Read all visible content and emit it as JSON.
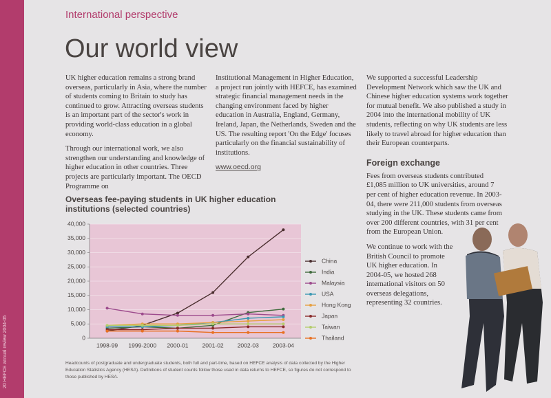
{
  "header": {
    "section": "International perspective",
    "title": "Our world view",
    "folio": "20  HEFCE annual review 2004-05"
  },
  "column_1": {
    "paragraphs": [
      "UK higher education remains a strong brand overseas, particularly in Asia, where the number of students coming to Britain to study has continued to grow. Attracting overseas students is an important part of the sector's work in providing world-class education in a global economy.",
      "Through our international work, we also strengthen our understanding and knowledge of higher education in other countries. Three projects are particularly important. The OECD Programme on"
    ]
  },
  "column_2": {
    "paragraphs": [
      "Institutional Management in Higher Education, a project run jointly with HEFCE, has examined strategic financial management needs in the changing environment faced by higher education in Australia, England, Germany, Ireland, Japan, the Netherlands, Sweden and the US. The resulting report 'On the Edge' focuses particularly on the financial sustainability of institutions."
    ],
    "link": "www.oecd.org"
  },
  "column_3": {
    "paragraphs": [
      "We supported a successful Leadership Development Network which saw the UK and Chinese higher education systems work together for mutual benefit. We also published a study in 2004 into the international mobility of UK students, reflecting on why UK students are less likely to travel abroad for higher education than their European counterparts."
    ],
    "heading": "Foreign exchange",
    "paragraphs_2": [
      "Fees from overseas students contributed £1,085 million to UK universities, around 7 per cent of higher education revenue. In 2003-04, there were 211,000 students from overseas studying in the UK. These students came from over 200 different countries, with 31 per cent from the European Union.",
      "We continue to work with the British Council to promote UK higher education. In 2004-05, we hosted 268 international visitors on 50 overseas delegations, representing 32 countries."
    ]
  },
  "chart_data": {
    "type": "line",
    "title": "Overseas fee-paying students in UK higher education institutions (selected countries)",
    "categories": [
      "1998-99",
      "1999-2000",
      "2000-01",
      "2001-02",
      "2002-03",
      "2003-04"
    ],
    "ylim": [
      0,
      40000
    ],
    "yticks": [
      0,
      {
        "value": 5000,
        "label": "5,000"
      },
      {
        "value": 10000,
        "label": "10,000"
      },
      {
        "value": 15000,
        "label": "15,000"
      },
      {
        "value": 20000,
        "label": "20,000"
      },
      {
        "value": 25000,
        "label": "25,000"
      },
      {
        "value": 30000,
        "label": "30,000"
      },
      {
        "value": 35000,
        "label": "35,000"
      },
      {
        "value": 40000,
        "label": "40,000"
      }
    ],
    "grid": true,
    "background": "#e8c6d6",
    "series": [
      {
        "name": "China",
        "color": "#4a2e2e",
        "values": [
          2500,
          4500,
          8800,
          16000,
          28500,
          38000
        ]
      },
      {
        "name": "India",
        "color": "#3f6a3c",
        "values": [
          3500,
          4000,
          3500,
          4500,
          9000,
          10200
        ]
      },
      {
        "name": "Malaysia",
        "color": "#9c4a8c",
        "values": [
          10500,
          8500,
          8000,
          8000,
          8500,
          8000
        ]
      },
      {
        "name": "USA",
        "color": "#3a98b2",
        "values": [
          4000,
          4000,
          4500,
          5500,
          7000,
          7500
        ]
      },
      {
        "name": "Hong Kong",
        "color": "#e6a040",
        "values": [
          4500,
          5000,
          5000,
          5500,
          6000,
          6500
        ]
      },
      {
        "name": "Japan",
        "color": "#8a2a2a",
        "values": [
          3000,
          3000,
          3500,
          3500,
          4000,
          4000
        ]
      },
      {
        "name": "Taiwan",
        "color": "#b4cc6c",
        "values": [
          4500,
          4500,
          4500,
          5000,
          5000,
          5000
        ]
      },
      {
        "name": "Thailand",
        "color": "#e87022",
        "values": [
          2500,
          2500,
          2500,
          2000,
          2000,
          2000
        ]
      }
    ],
    "footnote": "Headcounts of postgraduate and undergraduate students, both full and part-time, based on HEFCE analysis of data collected by the Higher Education Statistics Agency (HESA). Definitions of student counts follow those used in data returns to HEFCE, so figures do not correspond to those published by HESA."
  }
}
